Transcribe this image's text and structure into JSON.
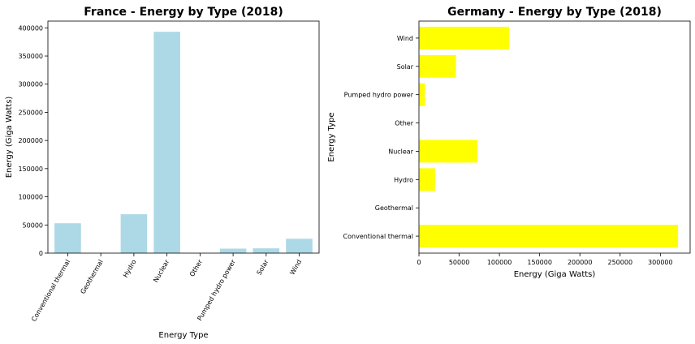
{
  "chart_data": [
    {
      "type": "bar",
      "orientation": "vertical",
      "title": "France - Energy by Type (2018)",
      "xlabel": "Energy Type",
      "ylabel": "Energy (Giga Watts)",
      "categories": [
        "Conventional thermal",
        "Geothermal",
        "Hydro",
        "Nuclear",
        "Other",
        "Pumped hydro power",
        "Solar",
        "Wind"
      ],
      "values": [
        53000,
        0,
        69000,
        393000,
        0,
        8000,
        8500,
        25500
      ],
      "ylim": [
        0,
        412000
      ],
      "yticks": [
        0,
        50000,
        100000,
        150000,
        200000,
        250000,
        300000,
        350000,
        400000
      ],
      "ytick_labels": [
        "0",
        "50000",
        "100000",
        "150000",
        "200000",
        "250000",
        "300000",
        "350000",
        "400000"
      ],
      "tick_rotation": 60,
      "color": "#add8e6",
      "grid": false
    },
    {
      "type": "bar",
      "orientation": "horizontal",
      "title": "Germany - Energy by Type (2018)",
      "xlabel": "Energy (Giga Watts)",
      "ylabel": "Energy Type",
      "categories": [
        "Conventional thermal",
        "Geothermal",
        "Hydro",
        "Nuclear",
        "Other",
        "Pumped hydro power",
        "Solar",
        "Wind"
      ],
      "values": [
        322000,
        0,
        20000,
        72500,
        0,
        7500,
        46000,
        112000
      ],
      "xlim": [
        0,
        337000
      ],
      "xticks": [
        0,
        50000,
        100000,
        150000,
        200000,
        250000,
        300000
      ],
      "xtick_labels": [
        "0",
        "50000",
        "100000",
        "150000",
        "200000",
        "250000",
        "300000"
      ],
      "color": "#ffff00",
      "grid": false
    }
  ]
}
